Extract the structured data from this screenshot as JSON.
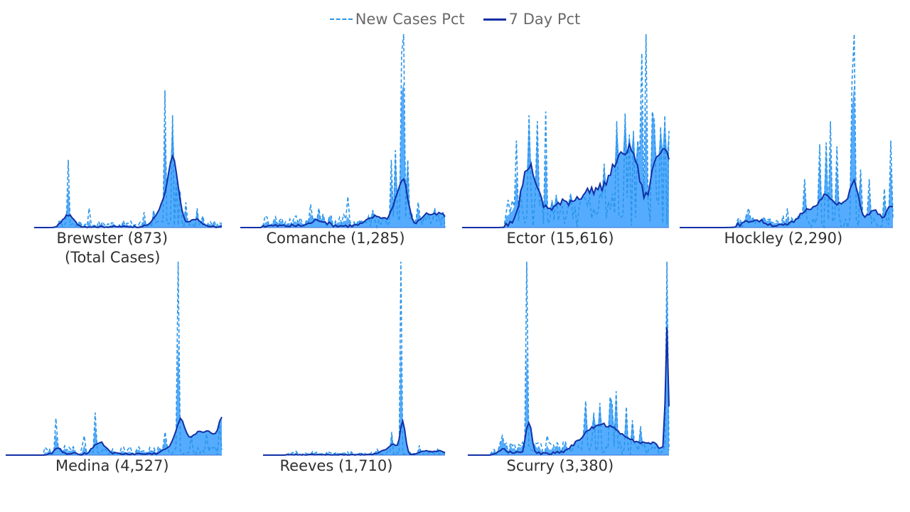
{
  "legend": {
    "series": [
      {
        "name": "New Cases Pct",
        "style": "dashed",
        "color": "#2b95e9"
      },
      {
        "name": "7 Day Pct",
        "style": "solid",
        "color": "#1230a6"
      }
    ],
    "placement": "top-center"
  },
  "colors": {
    "area_fill": "#55acff",
    "new_cases_line": "#2b95e9",
    "seven_day_line": "#1230a6",
    "baseline": "#3a6fd0",
    "label_text": "#303030",
    "legend_text": "#6a6a6a"
  },
  "chart_data": [
    {
      "type": "line",
      "county": "Brewster",
      "total_cases": "873",
      "label": "Brewster (873)",
      "sublabel": "(Total Cases)",
      "ylim": [
        0,
        1
      ],
      "x_count": 100,
      "spikes_new": [
        [
          18,
          0.35
        ],
        [
          29,
          0.1
        ],
        [
          58,
          0.08
        ],
        [
          63,
          0.09
        ],
        [
          69,
          0.71
        ],
        [
          73,
          0.58
        ],
        [
          75,
          0.23
        ],
        [
          77,
          0.19
        ],
        [
          80,
          0.13
        ],
        [
          86,
          0.1
        ],
        [
          89,
          0.06
        ]
      ],
      "bumps_7day": [
        [
          18,
          0.06,
          4
        ],
        [
          64,
          0.03,
          4
        ],
        [
          69,
          0.12,
          4
        ],
        [
          73,
          0.28,
          3
        ],
        [
          76,
          0.1,
          3
        ],
        [
          85,
          0.04,
          4
        ]
      ],
      "noise_level": 0.015
    },
    {
      "type": "line",
      "county": "Comanche",
      "total_cases": "1,285",
      "label": "Comanche (1,285)",
      "sublabel": "",
      "ylim": [
        0,
        1
      ],
      "x_count": 100,
      "spikes_new": [
        [
          16,
          0.03
        ],
        [
          34,
          0.12
        ],
        [
          38,
          0.1
        ],
        [
          52,
          0.16
        ],
        [
          64,
          0.09
        ],
        [
          73,
          0.35
        ],
        [
          75,
          0.4
        ],
        [
          78,
          0.9
        ],
        [
          79,
          1.0
        ],
        [
          81,
          0.35
        ],
        [
          86,
          0.13
        ],
        [
          94,
          0.1
        ],
        [
          98,
          0.08
        ]
      ],
      "bumps_7day": [
        [
          38,
          0.03,
          5
        ],
        [
          66,
          0.05,
          6
        ],
        [
          75,
          0.1,
          3
        ],
        [
          79,
          0.22,
          3
        ],
        [
          90,
          0.06,
          4
        ],
        [
          97,
          0.06,
          4
        ]
      ],
      "noise_level": 0.03
    },
    {
      "type": "area",
      "county": "Ector",
      "total_cases": "15,616",
      "label": "Ector (15,616)",
      "sublabel": "",
      "ylim": [
        0,
        1
      ],
      "x_count": 100,
      "spikes_new": [
        [
          26,
          0.45
        ],
        [
          32,
          0.58
        ],
        [
          36,
          0.55
        ],
        [
          40,
          0.6
        ],
        [
          68,
          0.33
        ],
        [
          74,
          0.55
        ],
        [
          78,
          0.59
        ],
        [
          80,
          0.48
        ],
        [
          82,
          0.5
        ],
        [
          84,
          0.45
        ],
        [
          85,
          0.38
        ],
        [
          86,
          0.9
        ],
        [
          88,
          1.0
        ],
        [
          91,
          0.6
        ],
        [
          92,
          0.55
        ],
        [
          95,
          0.52
        ],
        [
          97,
          0.58
        ],
        [
          99,
          0.5
        ]
      ],
      "bumps_7day": [
        [
          32,
          0.28,
          5
        ],
        [
          48,
          0.09,
          12
        ],
        [
          64,
          0.15,
          10
        ],
        [
          75,
          0.25,
          6
        ],
        [
          82,
          0.29,
          5
        ],
        [
          93,
          0.32,
          4
        ],
        [
          98,
          0.32,
          3
        ]
      ],
      "noise_level": 0.08
    },
    {
      "type": "line",
      "county": "Hockley",
      "total_cases": "2,290",
      "label": "Hockley (2,290)",
      "sublabel": "",
      "ylim": [
        0,
        1
      ],
      "x_count": 100,
      "spikes_new": [
        [
          32,
          0.1
        ],
        [
          50,
          0.1
        ],
        [
          58,
          0.25
        ],
        [
          65,
          0.43
        ],
        [
          68,
          0.44
        ],
        [
          70,
          0.55
        ],
        [
          73,
          0.42
        ],
        [
          80,
          0.75
        ],
        [
          81,
          1.0
        ],
        [
          84,
          0.3
        ],
        [
          88,
          0.25
        ],
        [
          95,
          0.2
        ],
        [
          98,
          0.45
        ]
      ],
      "bumps_7day": [
        [
          35,
          0.03,
          6
        ],
        [
          60,
          0.09,
          6
        ],
        [
          68,
          0.14,
          4
        ],
        [
          75,
          0.11,
          4
        ],
        [
          81,
          0.22,
          3
        ],
        [
          90,
          0.08,
          4
        ],
        [
          98,
          0.1,
          3
        ]
      ],
      "noise_level": 0.03
    },
    {
      "type": "line",
      "county": "Medina",
      "total_cases": "4,527",
      "label": "Medina (4,527)",
      "sublabel": "",
      "ylim": [
        0,
        1
      ],
      "x_count": 100,
      "spikes_new": [
        [
          23,
          0.19
        ],
        [
          36,
          0.1
        ],
        [
          41,
          0.22
        ],
        [
          73,
          0.12
        ],
        [
          79,
          1.0
        ],
        [
          85,
          0.1
        ],
        [
          92,
          0.11
        ],
        [
          98,
          0.16
        ]
      ],
      "bumps_7day": [
        [
          24,
          0.03,
          2
        ],
        [
          43,
          0.06,
          4
        ],
        [
          75,
          0.03,
          4
        ],
        [
          80,
          0.16,
          3
        ],
        [
          87,
          0.09,
          5
        ],
        [
          94,
          0.1,
          5
        ],
        [
          99,
          0.15,
          2
        ]
      ],
      "noise_level": 0.02
    },
    {
      "type": "line",
      "county": "Reeves",
      "total_cases": "1,710",
      "label": "Reeves (1,710)",
      "sublabel": "",
      "ylim": [
        0,
        1
      ],
      "x_count": 100,
      "spikes_new": [
        [
          18,
          0.02
        ],
        [
          35,
          0.02
        ],
        [
          62,
          0.03
        ],
        [
          70,
          0.12
        ],
        [
          75,
          1.0
        ],
        [
          85,
          0.05
        ],
        [
          95,
          0.03
        ]
      ],
      "bumps_7day": [
        [
          66,
          0.02,
          4
        ],
        [
          71,
          0.05,
          3
        ],
        [
          76,
          0.17,
          2
        ],
        [
          88,
          0.02,
          4
        ],
        [
          96,
          0.02,
          4
        ]
      ],
      "noise_level": 0.008
    },
    {
      "type": "line",
      "county": "Scurry",
      "total_cases": "3,380",
      "label": "Scurry (3,380)",
      "sublabel": "",
      "ylim": [
        0,
        1
      ],
      "x_count": 100,
      "spikes_new": [
        [
          17,
          0.1
        ],
        [
          29,
          1.0
        ],
        [
          39,
          0.1
        ],
        [
          57,
          0.12
        ],
        [
          58,
          0.2
        ],
        [
          58,
          0.28
        ],
        [
          62,
          0.22
        ],
        [
          65,
          0.27
        ],
        [
          70,
          0.3
        ],
        [
          71,
          0.27
        ],
        [
          73,
          0.33
        ],
        [
          78,
          0.25
        ],
        [
          81,
          0.18
        ],
        [
          85,
          0.15
        ],
        [
          98,
          1.0
        ]
      ],
      "bumps_7day": [
        [
          18,
          0.02,
          3
        ],
        [
          30,
          0.16,
          2
        ],
        [
          58,
          0.08,
          8
        ],
        [
          65,
          0.09,
          6
        ],
        [
          72,
          0.09,
          6
        ],
        [
          80,
          0.06,
          6
        ],
        [
          90,
          0.05,
          6
        ],
        [
          98,
          0.65,
          1
        ]
      ],
      "noise_level": 0.03
    }
  ]
}
